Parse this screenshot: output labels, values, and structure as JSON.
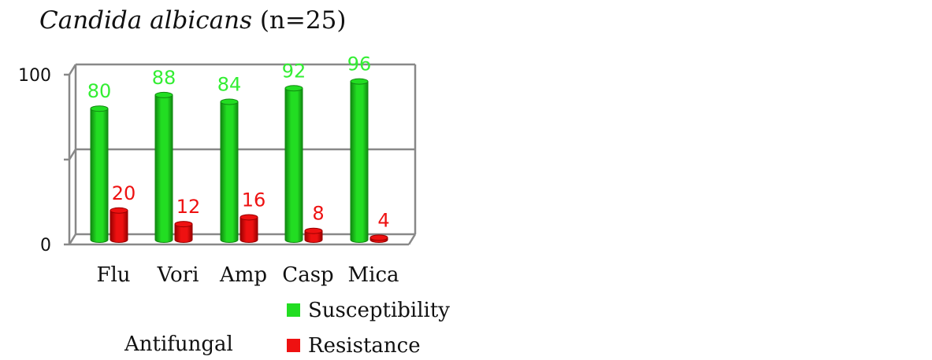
{
  "chart_data": {
    "type": "bar",
    "title_italic": "Candida albicans",
    "title_rest": " (n=25)",
    "xlabel": "Antifungal",
    "ylabel": "",
    "categories": [
      "Flu",
      "Vori",
      "Amp",
      "Casp",
      "Mica"
    ],
    "series": [
      {
        "name": "Susceptibility",
        "values": [
          80,
          88,
          84,
          92,
          96
        ]
      },
      {
        "name": "Resistance",
        "values": [
          20,
          12,
          16,
          8,
          4
        ]
      }
    ],
    "ylim": [
      0,
      100
    ],
    "yticks": [
      "0",
      "100"
    ],
    "grid": true,
    "legend_position": "bottom-right",
    "colors": {
      "Susceptibility": "#22dd22",
      "Susceptibility_dark": "#118811",
      "Susceptibility_label": "#33ee33",
      "Resistance": "#ee1111",
      "Resistance_dark": "#990000",
      "Resistance_label": "#ee1111",
      "grid": "#888888"
    }
  }
}
